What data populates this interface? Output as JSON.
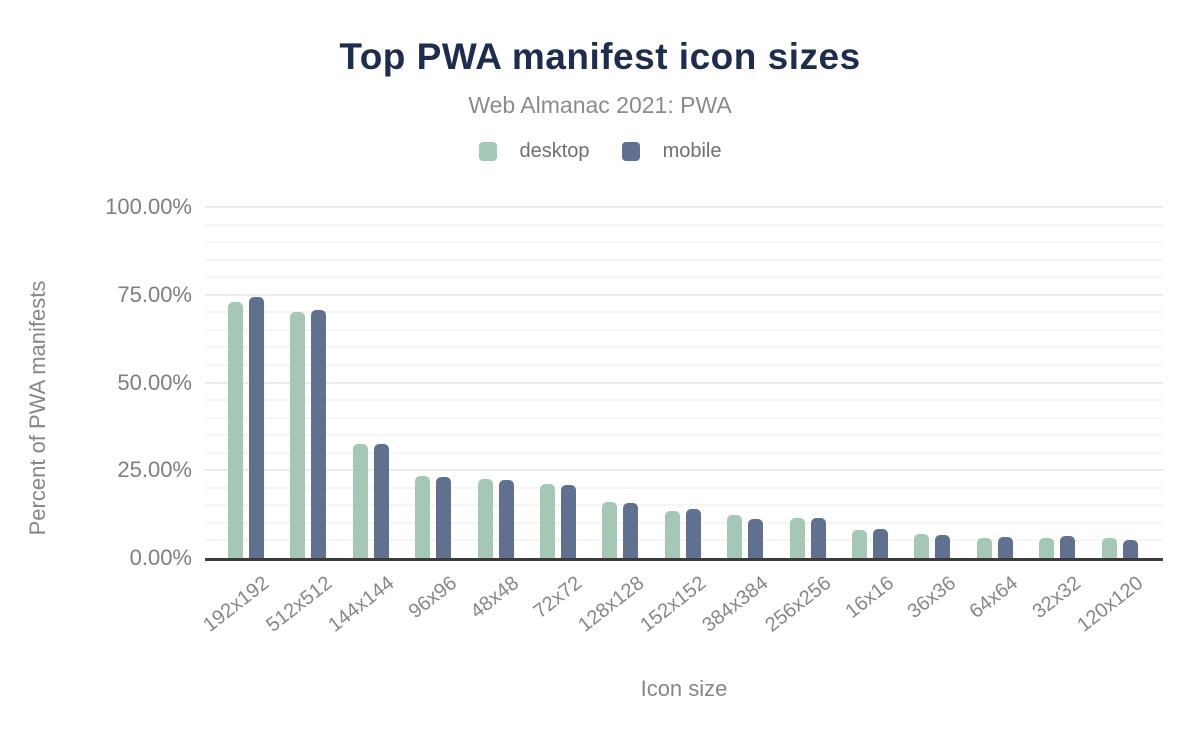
{
  "chart": {
    "title": "Top PWA manifest icon sizes",
    "subtitle": "Web Almanac 2021: PWA"
  },
  "colors": {
    "title_navy": "#1e2d4f",
    "desktop_green": "#a5c8b6",
    "mobile_slate": "#60708f",
    "axis_gray": "#85878a",
    "baseline_dark": "#3b3b3b"
  },
  "chart_data": {
    "type": "bar",
    "title": "Top PWA manifest icon sizes",
    "subtitle": "Web Almanac 2021: PWA",
    "categories": [
      "192x192",
      "512x512",
      "144x144",
      "96x96",
      "48x48",
      "72x72",
      "128x128",
      "152x152",
      "384x384",
      "256x256",
      "16x16",
      "36x36",
      "64x64",
      "32x32",
      "120x120"
    ],
    "series": [
      {
        "name": "desktop",
        "color": "#a5c8b6",
        "values": [
          72.8,
          70.0,
          32.4,
          23.3,
          22.5,
          21.0,
          16.0,
          13.5,
          12.2,
          11.3,
          8.0,
          6.8,
          5.7,
          5.6,
          5.6
        ]
      },
      {
        "name": "mobile",
        "color": "#60708f",
        "values": [
          74.4,
          70.6,
          32.6,
          23.2,
          22.1,
          20.8,
          15.8,
          14.0,
          11.0,
          11.4,
          8.2,
          6.6,
          6.1,
          6.3,
          5.0
        ]
      }
    ],
    "xlabel": "Icon size",
    "ylabel": "Percent of PWA manifests",
    "ylim": [
      0,
      100
    ],
    "y_ticks": [
      "0.00%",
      "25.00%",
      "50.00%",
      "75.00%",
      "100.00%"
    ],
    "y_tick_values": [
      0,
      25,
      50,
      75,
      100
    ],
    "minor_grid_step": 5,
    "grid": true,
    "legend_position": "top"
  }
}
